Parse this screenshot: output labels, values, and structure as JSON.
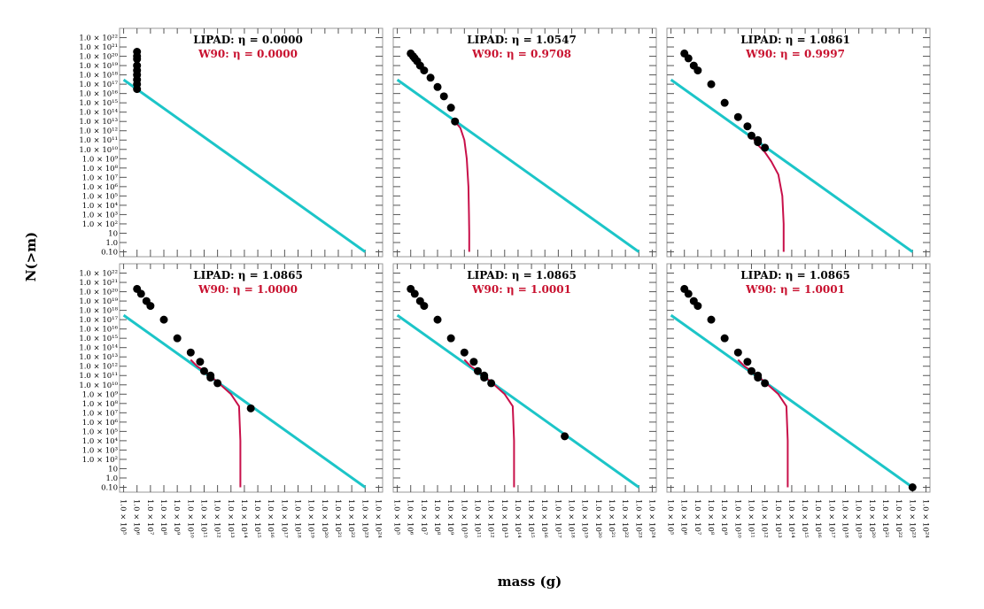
{
  "chart_data": {
    "type": "line",
    "xlabel": "mass (g)",
    "ylabel": "N(>m)",
    "log_scale": true,
    "xlim": [
      50000,
      2e+24
    ],
    "ylim": [
      0.03,
      1e+23
    ],
    "xticks": [
      {
        "value": 100000.0,
        "label": "1.0 × 10⁵"
      },
      {
        "value": 1000000.0,
        "label": "1.0 × 10⁶"
      },
      {
        "value": 10000000.0,
        "label": "1.0 × 10⁷"
      },
      {
        "value": 100000000.0,
        "label": "1.0 × 10⁸"
      },
      {
        "value": 1000000000.0,
        "label": "1.0 × 10⁹"
      },
      {
        "value": 10000000000.0,
        "label": "1.0 × 10¹⁰"
      },
      {
        "value": 100000000000.0,
        "label": "1.0 × 10¹¹"
      },
      {
        "value": 1000000000000.0,
        "label": "1.0 × 10¹²"
      },
      {
        "value": 10000000000000.0,
        "label": "1.0 × 10¹³"
      },
      {
        "value": 100000000000000.0,
        "label": "1.0 × 10¹⁴"
      },
      {
        "value": 1000000000000000.0,
        "label": "1.0 × 10¹⁵"
      },
      {
        "value": 1e+16,
        "label": "1.0 × 10¹⁶"
      },
      {
        "value": 1e+17,
        "label": "1.0 × 10¹⁷"
      },
      {
        "value": 1e+18,
        "label": "1.0 × 10¹⁸"
      },
      {
        "value": 1e+19,
        "label": "1.0 × 10¹⁹"
      },
      {
        "value": 1e+20,
        "label": "1.0 × 10²⁰"
      },
      {
        "value": 1e+21,
        "label": "1.0 × 10²¹"
      },
      {
        "value": 1e+22,
        "label": "1.0 × 10²²"
      },
      {
        "value": 1e+23,
        "label": "1.0 × 10²³"
      },
      {
        "value": 1e+24,
        "label": "1.0 × 10²⁴"
      }
    ],
    "yticks": [
      {
        "value": 0.1,
        "label": "0.10"
      },
      {
        "value": 1,
        "label": "1.0"
      },
      10,
      {
        "value": 100.0,
        "label": "1.0 × 10²"
      },
      {
        "value": 1000.0,
        "label": "1.0 × 10³"
      },
      {
        "value": 10000.0,
        "label": "1.0 × 10⁴"
      },
      {
        "value": 100000.0,
        "label": "1.0 × 10⁵"
      },
      {
        "value": 1000000.0,
        "label": "1.0 × 10⁶"
      },
      {
        "value": 10000000.0,
        "label": "1.0 × 10⁷"
      },
      {
        "value": 100000000.0,
        "label": "1.0 × 10⁸"
      },
      {
        "value": 1000000000.0,
        "label": "1.0 × 10⁹"
      },
      {
        "value": 10000000000.0,
        "label": "1.0 × 10¹⁰"
      },
      {
        "value": 100000000000.0,
        "label": "1.0 × 10¹¹"
      },
      {
        "value": 1000000000000.0,
        "label": "1.0 × 10¹²"
      },
      {
        "value": 10000000000000.0,
        "label": "1.0 × 10¹³"
      },
      {
        "value": 100000000000000.0,
        "label": "1.0 × 10¹⁴"
      },
      {
        "value": 1000000000000000.0,
        "label": "1.0 × 10¹⁵"
      },
      {
        "value": 1e+16,
        "label": "1.0 × 10¹⁶"
      },
      {
        "value": 1e+17,
        "label": "1.0 × 10¹⁷"
      },
      {
        "value": 1e+18,
        "label": "1.0 × 10¹⁸"
      },
      {
        "value": 1e+19,
        "label": "1.0 × 10¹⁹"
      },
      {
        "value": 1e+20,
        "label": "1.0 × 10²⁰"
      },
      {
        "value": 1e+21,
        "label": "1.0 × 10²¹"
      },
      {
        "value": 1e+22,
        "label": "1.0 × 10²²"
      }
    ],
    "panels": [
      {
        "title": "LIPAD: η = 0.0000",
        "subtitle": "W90: η = 0.0000",
        "series": [
          {
            "mode": "line",
            "color": "#1cc5c8",
            "x": [
              100000.0,
              1e+23
            ],
            "values": [
              3e+17,
              0.1
            ]
          },
          {
            "mode": "markers",
            "color": "#000000",
            "x": [
              1000000.0,
              1000000.0,
              1000000.0,
              1000000.0,
              1000000.0,
              1000000.0,
              1000000.0,
              1000000.0,
              1000000.0
            ],
            "values": [
              3e+20,
              1e+20,
              5e+19,
              1e+19,
              3e+18,
              1e+18,
              3e+17,
              1e+17,
              3e+16
            ]
          }
        ]
      },
      {
        "title": "LIPAD: η = 1.0547",
        "subtitle": "W90: η = 0.9708",
        "series": [
          {
            "mode": "line",
            "color": "#1cc5c8",
            "x": [
              100000.0,
              1e+23
            ],
            "values": [
              3e+17,
              0.1
            ]
          },
          {
            "mode": "line",
            "color": "#c8104a",
            "x": [
              2000000000.0,
              5000000000.0,
              10000000000.0,
              15000000000.0,
              20000000000.0,
              22000000000.0,
              23000000000.0,
              23000000000.0
            ],
            "values": [
              10000000000000.0,
              2000000000000.0,
              100000000000.0,
              1000000000.0,
              1000000.0,
              1000.0,
              10,
              0.1
            ]
          },
          {
            "mode": "markers",
            "color": "#000000",
            "x": [
              1000000.0,
              1500000.0,
              2000000.0,
              3000000.0,
              5000000.0,
              10000000.0,
              30000000.0,
              100000000.0,
              300000000.0,
              1000000000.0,
              2000000000.0
            ],
            "values": [
              2e+20,
              1e+20,
              6e+19,
              3e+19,
              1e+19,
              3e+18,
              5e+17,
              5e+16,
              5000000000000000.0,
              300000000000000.0,
              10000000000000.0
            ]
          }
        ]
      },
      {
        "title": "LIPAD: η = 1.0861",
        "subtitle": "W90: η = 0.9997",
        "series": [
          {
            "mode": "line",
            "color": "#1cc5c8",
            "x": [
              100000.0,
              1e+23
            ],
            "values": [
              3e+17,
              0.1
            ]
          },
          {
            "mode": "line",
            "color": "#c8104a",
            "x": [
              100000000000.0,
              300000000000.0,
              1000000000000.0,
              3000000000000.0,
              10000000000000.0,
              20000000000000.0,
              25000000000000.0,
              25000000000000.0
            ],
            "values": [
              300000000000.0,
              30000000000.0,
              5000000000.0,
              500000000.0,
              20000000.0,
              100000.0,
              100,
              0.1
            ]
          },
          {
            "mode": "markers",
            "color": "#000000",
            "x": [
              1000000.0,
              2000000.0,
              5000000.0,
              10000000.0,
              100000000.0,
              1000000000.0,
              10000000000.0,
              50000000000.0,
              100000000000.0,
              300000000000.0,
              300000000000.0,
              1000000000000.0
            ],
            "values": [
              2e+20,
              6e+19,
              1e+19,
              3e+18,
              1e+17,
              1000000000000000.0,
              30000000000000.0,
              3000000000000.0,
              300000000000.0,
              100000000000.0,
              60000000000.0,
              15000000000.0
            ]
          }
        ]
      },
      {
        "title": "LIPAD: η = 1.0865",
        "subtitle": "W90: η = 1.0000",
        "series": [
          {
            "mode": "line",
            "color": "#1cc5c8",
            "x": [
              100000.0,
              1e+23
            ],
            "values": [
              3e+17,
              0.1
            ]
          },
          {
            "mode": "line",
            "color": "#c8104a",
            "x": [
              10000000000.0,
              30000000000.0,
              100000000000.0,
              1000000000000.0,
              10000000000000.0,
              40000000000000.0,
              50000000000000.0,
              50000000000000.0
            ],
            "values": [
              5000000000000.0,
              1000000000000.0,
              300000000000.0,
              20000000000.0,
              1000000000.0,
              50000000.0,
              10000.0,
              0.1
            ]
          },
          {
            "mode": "markers",
            "color": "#000000",
            "x": [
              1000000.0,
              2000000.0,
              5000000.0,
              10000000.0,
              100000000.0,
              1000000000.0,
              10000000000.0,
              50000000000.0,
              100000000000.0,
              300000000000.0,
              300000000000.0,
              1000000000000.0,
              300000000000000.0
            ],
            "values": [
              2e+20,
              6e+19,
              1e+19,
              3e+18,
              1e+17,
              1000000000000000.0,
              30000000000000.0,
              3000000000000.0,
              300000000000.0,
              100000000000.0,
              60000000000.0,
              15000000000.0,
              30000000.0
            ]
          }
        ]
      },
      {
        "title": "LIPAD: η = 1.0865",
        "subtitle": "W90: η = 1.0001",
        "series": [
          {
            "mode": "line",
            "color": "#1cc5c8",
            "x": [
              100000.0,
              1e+23
            ],
            "values": [
              3e+17,
              0.1
            ]
          },
          {
            "mode": "line",
            "color": "#c8104a",
            "x": [
              10000000000.0,
              30000000000.0,
              100000000000.0,
              1000000000000.0,
              10000000000000.0,
              40000000000000.0,
              50000000000000.0,
              50000000000000.0
            ],
            "values": [
              5000000000000.0,
              1000000000000.0,
              300000000000.0,
              20000000000.0,
              1000000000.0,
              50000000.0,
              10000.0,
              0.1
            ]
          },
          {
            "mode": "markers",
            "color": "#000000",
            "x": [
              1000000.0,
              2000000.0,
              5000000.0,
              10000000.0,
              100000000.0,
              1000000000.0,
              10000000000.0,
              50000000000.0,
              100000000000.0,
              300000000000.0,
              300000000000.0,
              1000000000000.0,
              3e+17
            ],
            "values": [
              2e+20,
              6e+19,
              1e+19,
              3e+18,
              1e+17,
              1000000000000000.0,
              30000000000000.0,
              3000000000000.0,
              300000000000.0,
              100000000000.0,
              60000000000.0,
              15000000000.0,
              30000.0
            ]
          }
        ]
      },
      {
        "title": "LIPAD: η = 1.0865",
        "subtitle": "W90: η = 1.0001",
        "series": [
          {
            "mode": "line",
            "color": "#1cc5c8",
            "x": [
              100000.0,
              1e+23
            ],
            "values": [
              3e+17,
              0.1
            ]
          },
          {
            "mode": "line",
            "color": "#c8104a",
            "x": [
              10000000000.0,
              30000000000.0,
              100000000000.0,
              1000000000000.0,
              10000000000000.0,
              40000000000000.0,
              50000000000000.0,
              50000000000000.0
            ],
            "values": [
              5000000000000.0,
              1000000000000.0,
              300000000000.0,
              20000000000.0,
              1000000000.0,
              50000000.0,
              10000.0,
              0.1
            ]
          },
          {
            "mode": "markers",
            "color": "#000000",
            "x": [
              1000000.0,
              2000000.0,
              5000000.0,
              10000000.0,
              100000000.0,
              1000000000.0,
              10000000000.0,
              50000000000.0,
              100000000000.0,
              300000000000.0,
              300000000000.0,
              1000000000000.0,
              1e+23
            ],
            "values": [
              2e+20,
              6e+19,
              1e+19,
              3e+18,
              1e+17,
              1000000000000000.0,
              30000000000000.0,
              3000000000000.0,
              300000000000.0,
              100000000000.0,
              60000000000.0,
              15000000000.0,
              0.1
            ]
          }
        ]
      }
    ]
  }
}
